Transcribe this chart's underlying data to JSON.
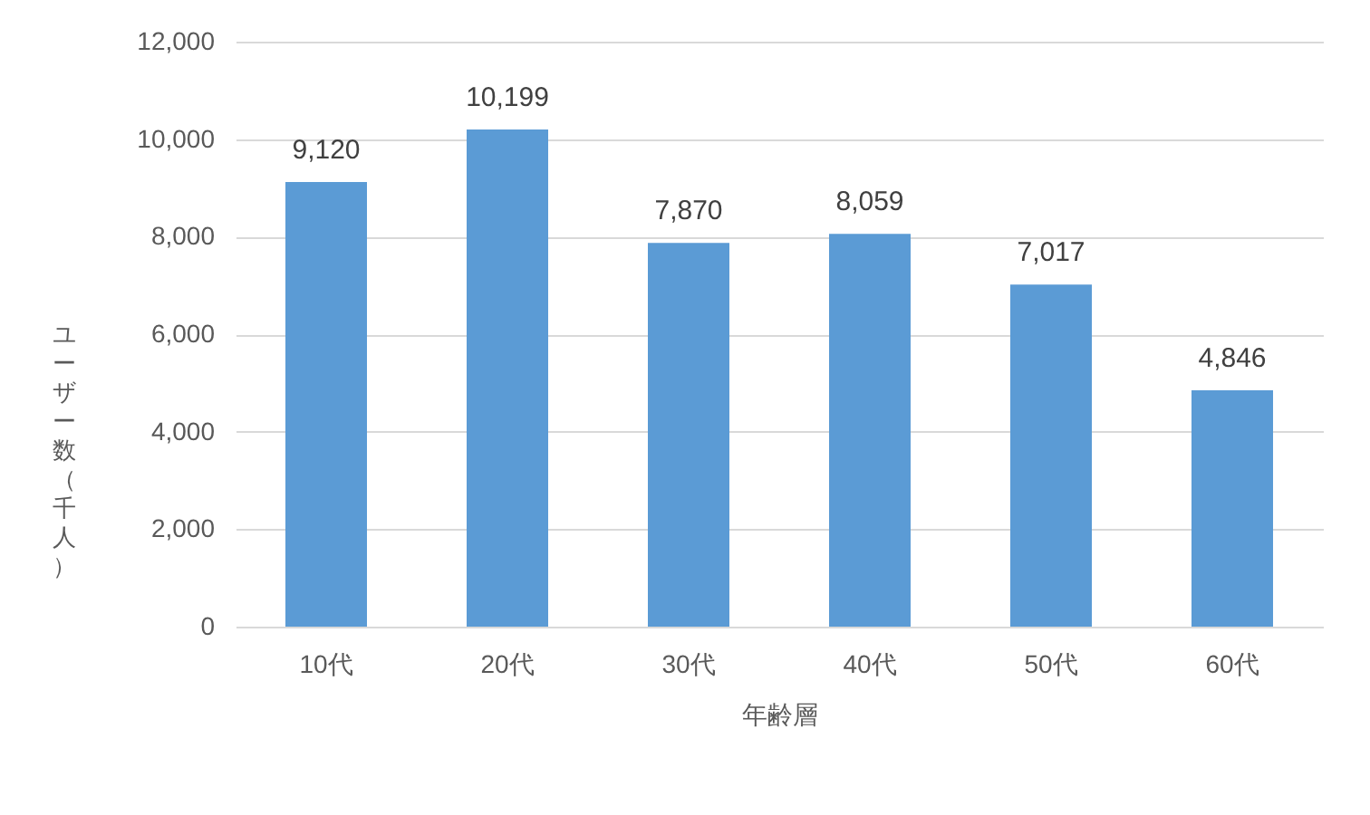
{
  "chart_data": {
    "type": "bar",
    "xlabel": "年齢層",
    "ylabel": "ユーザー数（千人）",
    "categories": [
      "10代",
      "20代",
      "30代",
      "40代",
      "50代",
      "60代"
    ],
    "values": [
      9120,
      10199,
      7870,
      8059,
      7017,
      4846
    ],
    "color": "#5b9bd5",
    "ylim": [
      0,
      12000
    ],
    "yticks": [
      {
        "value": 0,
        "label": "0"
      },
      {
        "value": 2000,
        "label": "2,000"
      },
      {
        "value": 4000,
        "label": "4,000"
      },
      {
        "value": 6000,
        "label": "6,000"
      },
      {
        "value": 8000,
        "label": "8,000"
      },
      {
        "value": 10000,
        "label": "10,000"
      },
      {
        "value": 12000,
        "label": "12,000"
      }
    ],
    "value_labels": [
      "9,120",
      "10,199",
      "7,870",
      "8,059",
      "7,017",
      "4,846"
    ],
    "grid": "y"
  }
}
